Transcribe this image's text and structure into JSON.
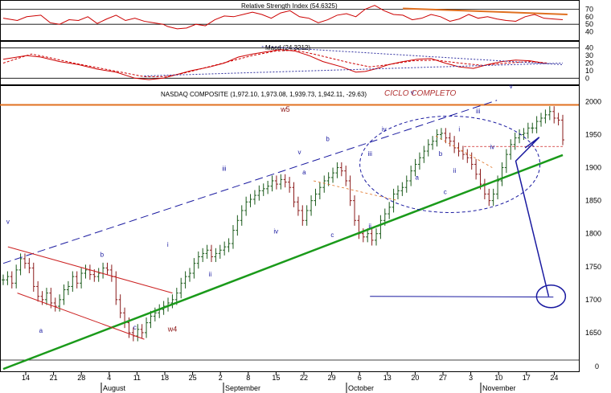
{
  "chart_data": [
    {
      "type": "line",
      "panel": "rsi",
      "title": "Relative Strength Index (54.6325)",
      "ylim": [
        30,
        80
      ],
      "y_ticks": [
        "70",
        "60",
        "50",
        "40"
      ],
      "series": [
        {
          "name": "RSI",
          "color": "#cc0000",
          "points": [
            [
              0,
              58
            ],
            [
              3,
              55
            ],
            [
              5,
              60
            ],
            [
              8,
              62
            ],
            [
              10,
              52
            ],
            [
              12,
              50
            ],
            [
              14,
              56
            ],
            [
              16,
              55
            ],
            [
              18,
              60
            ],
            [
              20,
              51
            ],
            [
              22,
              57
            ],
            [
              24,
              62
            ],
            [
              26,
              55
            ],
            [
              28,
              58
            ],
            [
              30,
              54
            ],
            [
              32,
              52
            ],
            [
              34,
              50
            ],
            [
              35,
              47
            ],
            [
              37,
              44
            ],
            [
              39,
              45
            ],
            [
              41,
              50
            ],
            [
              43,
              48
            ],
            [
              45,
              56
            ],
            [
              47,
              61
            ],
            [
              49,
              60
            ],
            [
              51,
              63
            ],
            [
              53,
              66
            ],
            [
              55,
              63
            ],
            [
              57,
              58
            ],
            [
              59,
              65
            ],
            [
              61,
              68
            ],
            [
              63,
              60
            ],
            [
              65,
              58
            ],
            [
              67,
              52
            ],
            [
              69,
              56
            ],
            [
              71,
              62
            ],
            [
              73,
              64
            ],
            [
              75,
              60
            ],
            [
              77,
              70
            ],
            [
              79,
              75
            ],
            [
              81,
              68
            ],
            [
              83,
              63
            ],
            [
              85,
              62
            ],
            [
              87,
              56
            ],
            [
              89,
              58
            ],
            [
              91,
              63
            ],
            [
              93,
              60
            ],
            [
              95,
              54
            ],
            [
              97,
              57
            ],
            [
              99,
              63
            ],
            [
              101,
              58
            ],
            [
              103,
              60
            ],
            [
              105,
              57
            ],
            [
              107,
              55
            ],
            [
              109,
              54
            ],
            [
              111,
              60
            ],
            [
              113,
              63
            ],
            [
              115,
              58
            ],
            [
              117,
              57
            ],
            [
              119,
              56
            ]
          ]
        }
      ],
      "trendline": {
        "color": "#e07020",
        "from": [
          85,
          71
        ],
        "to": [
          120,
          63
        ]
      }
    },
    {
      "type": "line",
      "panel": "macd",
      "title": "Macd (24.3212)",
      "ylim": [
        -5,
        45
      ],
      "y_ticks": [
        "40",
        "30",
        "20",
        "10",
        "0"
      ],
      "series": [
        {
          "name": "MACD",
          "color": "#cc0000",
          "dash": false,
          "points": [
            [
              0,
              25
            ],
            [
              5,
              30
            ],
            [
              8,
              28
            ],
            [
              12,
              22
            ],
            [
              16,
              18
            ],
            [
              20,
              12
            ],
            [
              24,
              8
            ],
            [
              28,
              0
            ],
            [
              31,
              -2
            ],
            [
              34,
              0
            ],
            [
              37,
              5
            ],
            [
              40,
              10
            ],
            [
              44,
              15
            ],
            [
              47,
              20
            ],
            [
              50,
              28
            ],
            [
              53,
              32
            ],
            [
              56,
              35
            ],
            [
              59,
              38
            ],
            [
              62,
              36
            ],
            [
              65,
              30
            ],
            [
              68,
              22
            ],
            [
              72,
              15
            ],
            [
              75,
              8
            ],
            [
              77,
              9
            ],
            [
              79,
              12
            ],
            [
              82,
              18
            ],
            [
              85,
              22
            ],
            [
              88,
              25
            ],
            [
              91,
              26
            ],
            [
              94,
              20
            ],
            [
              97,
              15
            ],
            [
              100,
              13
            ],
            [
              103,
              18
            ],
            [
              106,
              22
            ],
            [
              109,
              24
            ],
            [
              112,
              23
            ],
            [
              115,
              20
            ]
          ]
        },
        {
          "name": "Signal",
          "color": "#cc0000",
          "dash": true,
          "points": [
            [
              0,
              20
            ],
            [
              6,
              32
            ],
            [
              10,
              27
            ],
            [
              15,
              20
            ],
            [
              20,
              14
            ],
            [
              25,
              8
            ],
            [
              30,
              2
            ],
            [
              34,
              2
            ],
            [
              38,
              6
            ],
            [
              43,
              14
            ],
            [
              48,
              22
            ],
            [
              53,
              30
            ],
            [
              58,
              36
            ],
            [
              62,
              37
            ],
            [
              66,
              32
            ],
            [
              70,
              26
            ],
            [
              74,
              20
            ],
            [
              78,
              15
            ],
            [
              82,
              18
            ],
            [
              87,
              23
            ],
            [
              92,
              24
            ],
            [
              97,
              20
            ],
            [
              102,
              17
            ],
            [
              107,
              20
            ],
            [
              112,
              22
            ],
            [
              116,
              20
            ]
          ]
        }
      ],
      "trendlines": [
        {
          "color": "#3030a0",
          "from": [
            55,
            42
          ],
          "to": [
            119,
            18
          ]
        },
        {
          "color": "#3030a0",
          "from": [
            30,
            3
          ],
          "to": [
            119,
            20
          ]
        }
      ]
    },
    {
      "type": "ohlc",
      "panel": "price",
      "title": "NASDAQ COMPOSITE (1,972.10, 1,973.08, 1,939.73, 1,942.11, -29.63)",
      "annotation": "CICLO COMPLETO",
      "ylim": [
        1600,
        2020
      ],
      "y_ticks": [
        "2000",
        "1950",
        "1900",
        "1850",
        "1800",
        "1750",
        "1700",
        "1650"
      ],
      "y_bottom_tick": "0",
      "x_ticks": [
        "14",
        "21",
        "28",
        "4",
        "11",
        "18",
        "25",
        "2",
        "8",
        "15",
        "22",
        "29",
        "6",
        "13",
        "20",
        "27",
        "3",
        "10",
        "17",
        "24"
      ],
      "months": [
        "August",
        "September",
        "October",
        "November"
      ],
      "up_color": "#1a5a1a",
      "down_color": "#8a1a1a",
      "close": [
        1730,
        1735,
        1725,
        1745,
        1762,
        1755,
        1748,
        1720,
        1705,
        1700,
        1710,
        1695,
        1690,
        1700,
        1715,
        1720,
        1735,
        1725,
        1740,
        1745,
        1738,
        1735,
        1740,
        1748,
        1745,
        1735,
        1700,
        1680,
        1665,
        1650,
        1645,
        1655,
        1650,
        1665,
        1675,
        1680,
        1685,
        1690,
        1695,
        1700,
        1710,
        1725,
        1735,
        1740,
        1755,
        1765,
        1770,
        1775,
        1765,
        1770,
        1775,
        1780,
        1785,
        1805,
        1820,
        1835,
        1848,
        1852,
        1858,
        1865,
        1868,
        1872,
        1880,
        1875,
        1882,
        1878,
        1870,
        1848,
        1835,
        1820,
        1835,
        1850,
        1860,
        1870,
        1880,
        1885,
        1892,
        1900,
        1895,
        1880,
        1850,
        1820,
        1800,
        1795,
        1800,
        1790,
        1800,
        1820,
        1830,
        1840,
        1860,
        1865,
        1870,
        1880,
        1895,
        1905,
        1915,
        1925,
        1935,
        1940,
        1950,
        1952,
        1945,
        1940,
        1930,
        1925,
        1920,
        1915,
        1905,
        1890,
        1875,
        1860,
        1850,
        1860,
        1880,
        1900,
        1920,
        1935,
        1945,
        1950,
        1952,
        1960,
        1960,
        1970,
        1975,
        1980,
        1985,
        1975,
        1972,
        1942
      ],
      "lines": [
        {
          "name": "resistance",
          "color": "#e07020",
          "value_from": 1995,
          "value_to": 1995
        },
        {
          "name": "support",
          "color": "#1a9a1a",
          "from": [
            0,
            1595
          ],
          "to": [
            119,
            1919
          ]
        },
        {
          "name": "upper-channel",
          "color": "#1a1aa0",
          "dash": true,
          "from": [
            0,
            1755
          ],
          "to": [
            105,
            2002
          ]
        },
        {
          "name": "target",
          "color": "#1a1aa0",
          "from": [
            78,
            1705
          ],
          "to": [
            117,
            1704
          ]
        }
      ],
      "wave_labels": [
        "v",
        "a",
        "b",
        "c",
        "w4",
        "iii",
        "iv",
        "ii",
        "v",
        "a",
        "b",
        "i",
        "c",
        "ii",
        "iii",
        "iv",
        "v",
        "a",
        "b",
        "c",
        "i",
        "ii",
        "iii",
        "iv",
        "v",
        "w5"
      ]
    }
  ]
}
